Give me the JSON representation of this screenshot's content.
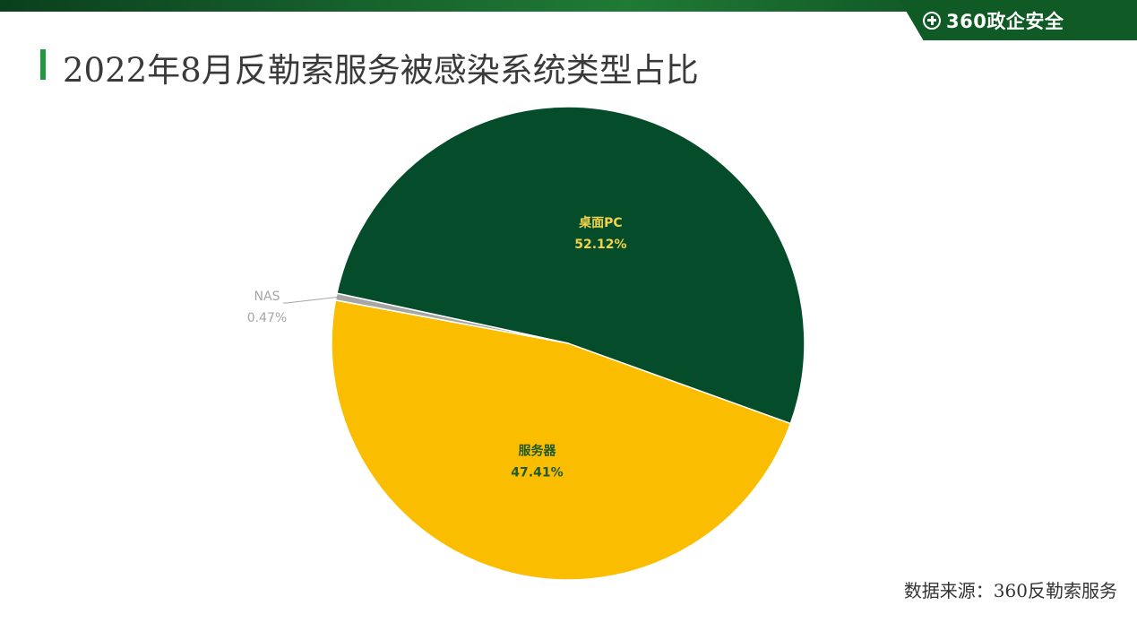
{
  "header": {
    "brand_text": "360政企安全",
    "brand_icon": "plus-circle-icon",
    "accent_color": "#1f9a3f"
  },
  "chart_data": {
    "type": "pie",
    "title": "2022年8月反勒索服务被感染系统类型占比",
    "slices": [
      {
        "label": "桌面PC",
        "value": 52.12,
        "display": "52.12%",
        "color": "#054d2a",
        "label_color": "#f2d24a"
      },
      {
        "label": "服务器",
        "value": 47.41,
        "display": "47.41%",
        "color": "#fbbd00",
        "label_color": "#1f5a2a"
      },
      {
        "label": "NAS",
        "value": 0.47,
        "display": "0.47%",
        "color": "#a6a6a6",
        "label_color": "#a6a6a6"
      }
    ]
  },
  "footer": {
    "source": "数据来源：360反勒索服务"
  }
}
